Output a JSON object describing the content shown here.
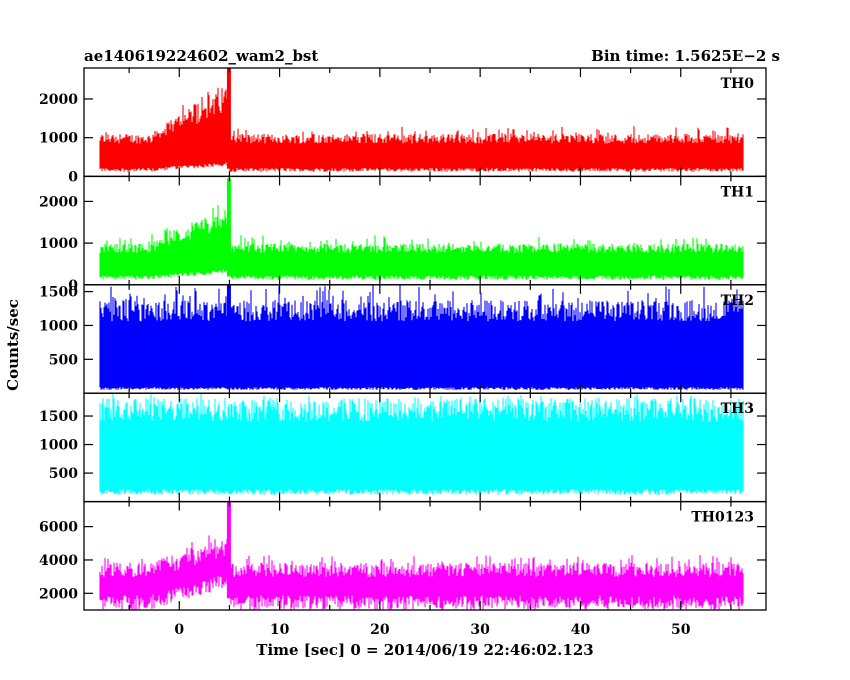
{
  "header": {
    "left": "ae140619224602_wam2_bst",
    "right": "Bin time: 1.5625E−2 s"
  },
  "ylabel": "Counts/sec",
  "xlabel": "Time [sec] 0 = 2014/06/19 22:46:02.123",
  "chart_data": {
    "type": "line",
    "x_range": [
      -7.9,
      56.2
    ],
    "x_limits": [
      -9.5,
      58.5
    ],
    "x_ticks": [
      0,
      10,
      20,
      30,
      40,
      50
    ],
    "bin_time_s": 0.015625,
    "panels": [
      {
        "name": "TH0",
        "color": "#ff0000",
        "ylim": [
          0,
          2800
        ],
        "yticks": [
          0,
          1000,
          2000
        ],
        "baseline_low": 200,
        "baseline_high": 1000,
        "noise_max": 1300,
        "burst": {
          "start": -3,
          "end": 5,
          "extra_high": 1200
        },
        "spike": {
          "x": 4.9,
          "value": 2800
        }
      },
      {
        "name": "TH1",
        "color": "#00ff00",
        "ylim": [
          0,
          2600
        ],
        "yticks": [
          0,
          1000,
          2000
        ],
        "baseline_low": 200,
        "baseline_high": 900,
        "noise_max": 1200,
        "burst": {
          "start": -3,
          "end": 5,
          "extra_high": 800
        },
        "spike": {
          "x": 4.9,
          "value": 2550
        }
      },
      {
        "name": "TH2",
        "color": "#0000ff",
        "ylim": [
          0,
          1600
        ],
        "yticks": [
          500,
          1000,
          1500
        ],
        "baseline_low": 80,
        "baseline_high": 1250,
        "noise_max": 1600,
        "burst": null,
        "spike": {
          "x": 4.9,
          "value": 1600
        }
      },
      {
        "name": "TH3",
        "color": "#00ffff",
        "ylim": [
          0,
          1900
        ],
        "yticks": [
          500,
          1000,
          1500
        ],
        "baseline_low": 200,
        "baseline_high": 1650,
        "noise_max": 1900,
        "burst": null,
        "spike": null
      },
      {
        "name": "TH0123",
        "color": "#ff00ff",
        "ylim": [
          1000,
          7500
        ],
        "yticks": [
          2000,
          4000,
          6000
        ],
        "baseline_low": 1700,
        "baseline_high": 3500,
        "noise_max": 4300,
        "burst": {
          "start": -3,
          "end": 5,
          "extra_high": 1700
        },
        "spike": {
          "x": 4.9,
          "value": 7500
        }
      }
    ]
  }
}
